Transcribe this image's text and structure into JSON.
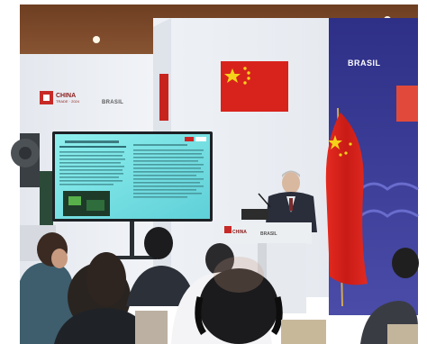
{
  "scene": {
    "wall_logo_china": "CHINA",
    "wall_logo_china_sub": "TRADE · 2024",
    "wall_logo_brasil": "BRASIL",
    "backdrop_logo_brasil": "BRASIL",
    "podium_logo_china": "CHINA",
    "podium_logo_brasil": "BRASIL"
  },
  "colors": {
    "flag_red": "#d8231c",
    "flag_star": "#f5d21a",
    "backdrop_blue": "#3c3f9a",
    "screen_cyan": "#6fe0e2",
    "ceiling_wood": "#7a4a2a"
  }
}
